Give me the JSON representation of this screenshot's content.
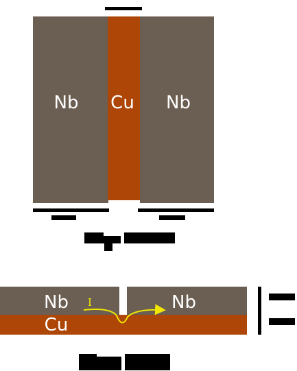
{
  "colors": {
    "niobium": "#6b5e53",
    "copper": "#ad4606",
    "current_arrow": "#f2e600",
    "scale_bar": "#000000"
  },
  "top_view": {
    "left_label": "Nb",
    "center_label": "Cu",
    "right_label": "Nb"
  },
  "side_view": {
    "left_label": "Nb",
    "right_label": "Nb",
    "bottom_label": "Cu",
    "current_label": "I"
  }
}
